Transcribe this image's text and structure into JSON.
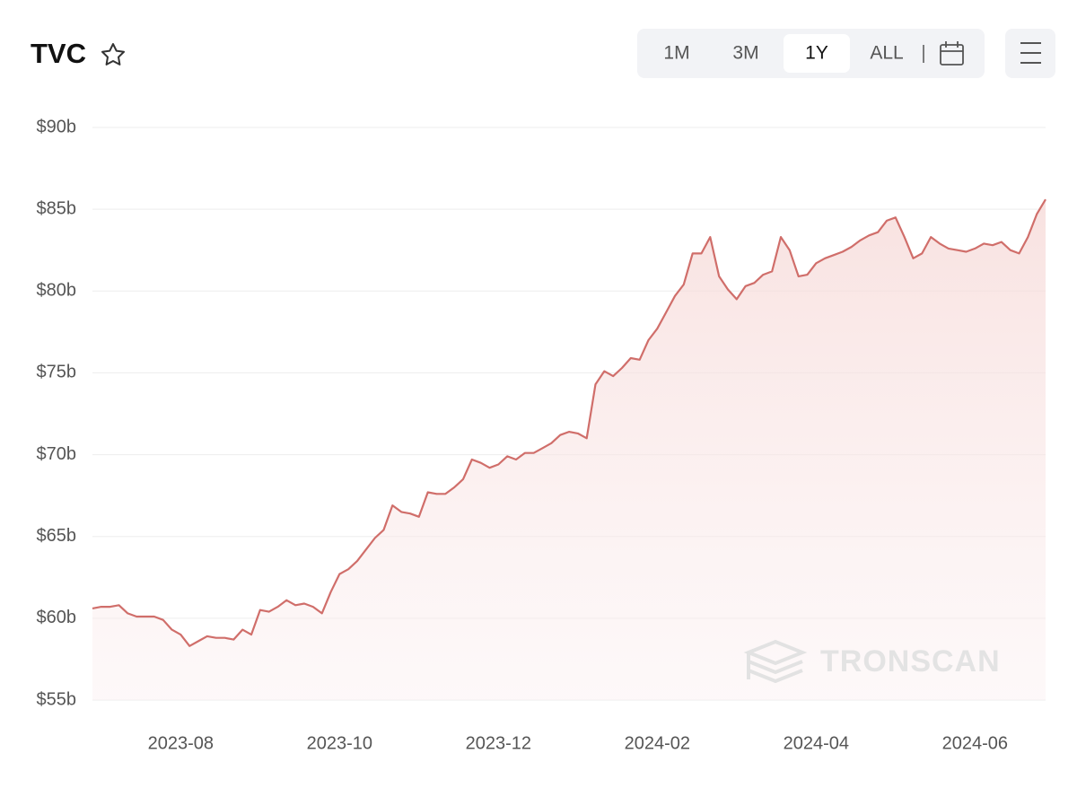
{
  "header": {
    "title": "TVC",
    "ranges": [
      "1M",
      "3M",
      "1Y",
      "ALL"
    ],
    "selected_range": "1Y"
  },
  "chart_data": {
    "type": "area",
    "watermark": "TRONSCAN",
    "categories": [
      null,
      null,
      null,
      null,
      null,
      null,
      null,
      null,
      null,
      null,
      "2023-08",
      null,
      null,
      null,
      null,
      null,
      null,
      null,
      null,
      null,
      null,
      null,
      null,
      null,
      null,
      null,
      null,
      null,
      "2023-10",
      null,
      null,
      null,
      null,
      null,
      null,
      null,
      null,
      null,
      null,
      null,
      null,
      null,
      null,
      null,
      null,
      null,
      "2023-12",
      null,
      null,
      null,
      null,
      null,
      null,
      null,
      null,
      null,
      null,
      null,
      null,
      null,
      null,
      null,
      null,
      null,
      "2024-02",
      null,
      null,
      null,
      null,
      null,
      null,
      null,
      null,
      null,
      null,
      null,
      null,
      null,
      null,
      null,
      null,
      null,
      "2024-04",
      null,
      null,
      null,
      null,
      null,
      null,
      null,
      null,
      null,
      null,
      null,
      null,
      null,
      null,
      null,
      null,
      null,
      "2024-06",
      null,
      null,
      null,
      null,
      null,
      null,
      null,
      null
    ],
    "series": [
      {
        "name": "TVC",
        "color": "#d06e6a",
        "values": [
          60.6,
          60.7,
          60.7,
          60.8,
          60.3,
          60.1,
          60.1,
          60.1,
          59.9,
          59.3,
          59.0,
          58.3,
          58.6,
          58.9,
          58.8,
          58.8,
          58.7,
          59.3,
          59.0,
          60.5,
          60.4,
          60.7,
          61.1,
          60.8,
          60.9,
          60.7,
          60.3,
          61.6,
          62.7,
          63.0,
          63.5,
          64.2,
          64.9,
          65.4,
          66.9,
          66.5,
          66.4,
          66.2,
          67.7,
          67.6,
          67.6,
          68.0,
          68.5,
          69.7,
          69.5,
          69.2,
          69.4,
          69.9,
          69.7,
          70.1,
          70.1,
          70.4,
          70.7,
          71.2,
          71.4,
          71.3,
          71.0,
          74.3,
          75.1,
          74.8,
          75.3,
          75.9,
          75.8,
          77.0,
          77.7,
          78.7,
          79.7,
          80.4,
          82.3,
          82.3,
          83.3,
          80.9,
          80.1,
          79.5,
          80.3,
          80.5,
          81.0,
          81.2,
          83.3,
          82.5,
          80.9,
          81.0,
          81.7,
          82.0,
          82.2,
          82.4,
          82.7,
          83.1,
          83.4,
          83.6,
          84.3,
          84.5,
          83.3,
          82.0,
          82.3,
          83.3,
          82.9,
          82.6,
          82.5,
          82.4,
          82.6,
          82.9,
          82.8,
          83.0,
          82.5,
          82.3,
          83.3,
          84.7,
          85.6
        ]
      }
    ],
    "ylim": [
      55,
      90
    ],
    "yticks": [
      {
        "value": 55,
        "label": "$55b"
      },
      {
        "value": 60,
        "label": "$60b"
      },
      {
        "value": 65,
        "label": "$65b"
      },
      {
        "value": 70,
        "label": "$70b"
      },
      {
        "value": 75,
        "label": "$75b"
      },
      {
        "value": 80,
        "label": "$80b"
      },
      {
        "value": 85,
        "label": "$85b"
      },
      {
        "value": 90,
        "label": "$90b"
      }
    ],
    "grid": true
  }
}
